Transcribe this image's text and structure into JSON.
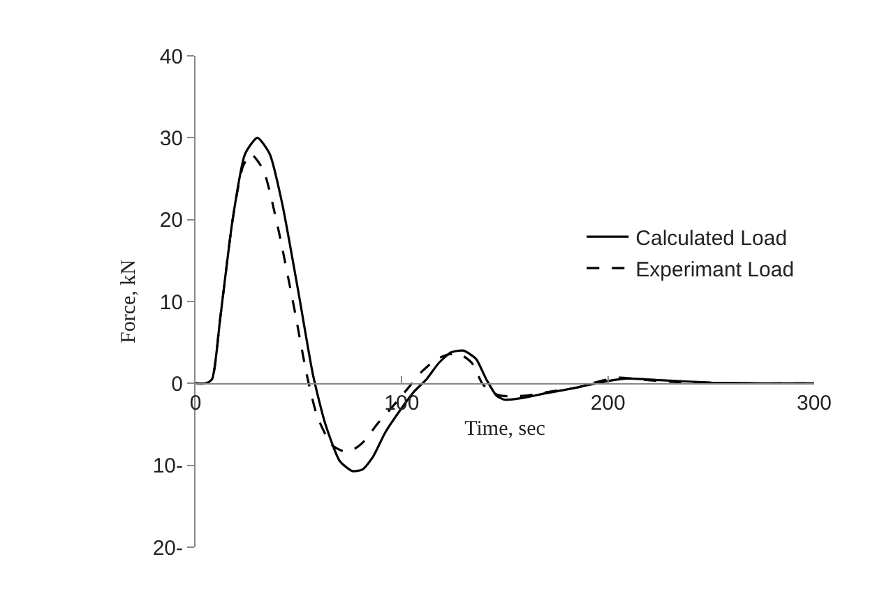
{
  "chart_data": {
    "type": "line",
    "xlabel": "Time, sec",
    "ylabel": "Force, kN",
    "xlim": [
      0,
      300
    ],
    "ylim": [
      -20,
      40
    ],
    "xticks": [
      0,
      100,
      200,
      300
    ],
    "yticks": [
      {
        "value": -20,
        "label": "20-"
      },
      {
        "value": -10,
        "label": "10-"
      },
      0,
      10,
      20,
      30,
      40
    ],
    "legend": "right",
    "marker": "none",
    "series": [
      {
        "name": "Calculated Load",
        "color": "#000000",
        "line_style": "solid",
        "x": [
          0,
          5,
          8,
          12,
          18,
          24,
          30,
          36,
          42,
          50,
          57,
          63,
          70,
          76,
          81,
          86,
          92,
          100,
          106,
          112,
          118,
          124,
          130,
          136,
          141,
          146,
          150,
          158,
          170,
          185,
          200,
          210,
          225,
          250,
          275,
          300
        ],
        "values": [
          0,
          0,
          0.5,
          8,
          20,
          28,
          30,
          28,
          22,
          11,
          1,
          -5,
          -9.5,
          -10.7,
          -10.5,
          -9,
          -6,
          -3,
          -1,
          0.5,
          2.5,
          3.8,
          4,
          3,
          0.5,
          -1.5,
          -2,
          -1.8,
          -1.2,
          -0.5,
          0.3,
          0.6,
          0.4,
          0.1,
          0,
          0
        ]
      },
      {
        "name": "Experimant Load",
        "color": "#000000",
        "line_style": "dashed",
        "x": [
          0,
          5,
          8,
          12,
          18,
          23,
          27,
          33,
          40,
          48,
          54,
          59,
          66,
          72,
          77,
          82,
          88,
          95,
          100,
          105,
          110,
          116,
          122,
          128,
          134,
          139,
          143,
          148,
          160,
          172,
          185,
          195,
          205,
          215,
          230,
          260,
          300
        ],
        "values": [
          0,
          0,
          0.5,
          8,
          20,
          26.5,
          28,
          26,
          19,
          9,
          1,
          -4,
          -7.5,
          -8.3,
          -8,
          -7,
          -5,
          -3,
          -1.5,
          0,
          1.5,
          2.8,
          3.5,
          3.6,
          2.5,
          0,
          -1,
          -1.5,
          -1.5,
          -1,
          -0.5,
          0.2,
          0.7,
          0.5,
          0.2,
          0,
          0
        ]
      }
    ]
  }
}
